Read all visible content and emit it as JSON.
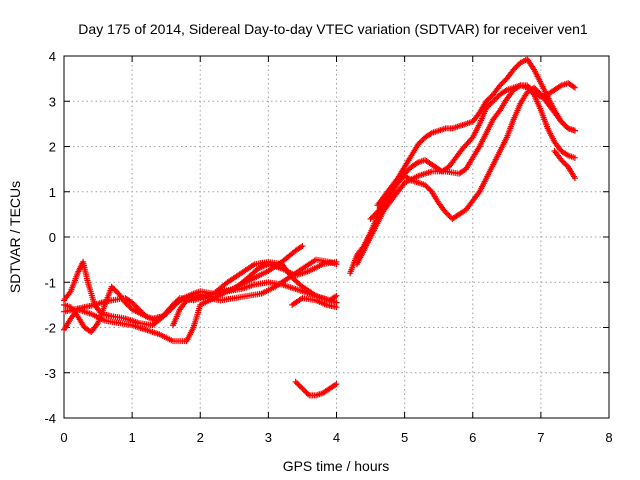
{
  "chart_data": {
    "type": "scatter",
    "title": "Day 175 of 2014, Sidereal Day-to-day VTEC variation (SDTVAR) for receiver ven1",
    "xlabel": "GPS time / hours",
    "ylabel": "SDTVAR / TECUs",
    "xlim": [
      0,
      8
    ],
    "ylim": [
      -4,
      4
    ],
    "xticks": [
      "0",
      "1",
      "2",
      "3",
      "4",
      "5",
      "6",
      "7",
      "8"
    ],
    "yticks": [
      "-4",
      "-3",
      "-2",
      "-1",
      "0",
      "1",
      "2",
      "3",
      "4"
    ],
    "grid": true,
    "marker": "+",
    "color": "#ff0000",
    "series": [
      {
        "points": [
          [
            0.0,
            -2.05
          ],
          [
            0.1,
            -1.8
          ],
          [
            0.2,
            -1.6
          ],
          [
            0.4,
            -1.7
          ],
          [
            0.6,
            -1.85
          ],
          [
            0.8,
            -1.9
          ],
          [
            1.0,
            -1.95
          ],
          [
            1.2,
            -2.05
          ],
          [
            1.4,
            -2.15
          ],
          [
            1.6,
            -2.3
          ],
          [
            1.8,
            -2.3
          ],
          [
            1.9,
            -2.0
          ],
          [
            2.0,
            -1.5
          ],
          [
            2.2,
            -1.35
          ],
          [
            2.4,
            -1.2
          ],
          [
            2.6,
            -1.05
          ],
          [
            2.8,
            -0.9
          ],
          [
            3.0,
            -0.75
          ],
          [
            3.2,
            -0.55
          ],
          [
            3.4,
            -0.3
          ],
          [
            3.5,
            -0.2
          ]
        ]
      },
      {
        "points": [
          [
            0.0,
            -1.4
          ],
          [
            0.1,
            -1.2
          ],
          [
            0.2,
            -0.8
          ],
          [
            0.28,
            -0.55
          ],
          [
            0.35,
            -1.0
          ],
          [
            0.45,
            -1.5
          ],
          [
            0.55,
            -1.7
          ],
          [
            0.7,
            -1.75
          ],
          [
            0.9,
            -1.8
          ],
          [
            1.1,
            -1.9
          ],
          [
            1.3,
            -1.95
          ],
          [
            1.5,
            -1.7
          ],
          [
            1.7,
            -1.4
          ],
          [
            1.9,
            -1.3
          ],
          [
            2.1,
            -1.35
          ],
          [
            2.3,
            -1.4
          ],
          [
            2.5,
            -1.35
          ],
          [
            2.7,
            -1.3
          ],
          [
            2.9,
            -1.25
          ],
          [
            3.1,
            -1.1
          ],
          [
            3.3,
            -0.9
          ],
          [
            3.5,
            -0.7
          ],
          [
            3.7,
            -0.5
          ],
          [
            3.9,
            -0.55
          ],
          [
            4.0,
            -0.6
          ]
        ]
      },
      {
        "points": [
          [
            0.0,
            -1.5
          ],
          [
            0.1,
            -1.55
          ],
          [
            0.2,
            -1.75
          ],
          [
            0.3,
            -2.0
          ],
          [
            0.4,
            -2.1
          ],
          [
            0.5,
            -1.9
          ],
          [
            0.6,
            -1.5
          ],
          [
            0.7,
            -1.1
          ],
          [
            0.8,
            -1.25
          ],
          [
            0.9,
            -1.45
          ],
          [
            1.0,
            -1.6
          ],
          [
            1.2,
            -1.75
          ],
          [
            1.35,
            -1.85
          ],
          [
            1.5,
            -1.7
          ],
          [
            1.6,
            -1.5
          ],
          [
            1.7,
            -1.35
          ],
          [
            1.9,
            -1.4
          ],
          [
            2.1,
            -1.3
          ],
          [
            2.3,
            -1.2
          ],
          [
            2.5,
            -1.15
          ],
          [
            2.7,
            -0.9
          ],
          [
            2.85,
            -0.7
          ],
          [
            3.0,
            -0.6
          ],
          [
            3.2,
            -0.7
          ],
          [
            3.4,
            -0.85
          ],
          [
            3.6,
            -0.75
          ],
          [
            3.8,
            -0.6
          ],
          [
            4.0,
            -0.55
          ]
        ]
      },
      {
        "points": [
          [
            0.0,
            -1.65
          ],
          [
            0.15,
            -1.6
          ],
          [
            0.3,
            -1.55
          ],
          [
            0.45,
            -1.5
          ],
          [
            0.55,
            -1.45
          ],
          [
            0.7,
            -1.4
          ],
          [
            0.9,
            -1.35
          ],
          [
            1.0,
            -1.45
          ],
          [
            1.1,
            -1.6
          ],
          [
            1.2,
            -1.75
          ],
          [
            1.3,
            -1.8
          ],
          [
            1.45,
            -1.75
          ],
          [
            1.6,
            -1.5
          ],
          [
            1.75,
            -1.35
          ],
          [
            1.9,
            -1.25
          ],
          [
            2.0,
            -1.2
          ],
          [
            2.2,
            -1.25
          ],
          [
            2.4,
            -1.0
          ],
          [
            2.6,
            -0.8
          ],
          [
            2.8,
            -0.6
          ],
          [
            3.0,
            -0.55
          ],
          [
            3.2,
            -0.6
          ],
          [
            3.35,
            -0.9
          ],
          [
            3.5,
            -1.1
          ],
          [
            3.7,
            -1.3
          ],
          [
            3.9,
            -1.4
          ],
          [
            4.0,
            -1.3
          ]
        ]
      },
      {
        "points": [
          [
            1.6,
            -1.95
          ],
          [
            1.7,
            -1.6
          ],
          [
            1.8,
            -1.4
          ],
          [
            2.0,
            -1.3
          ],
          [
            2.2,
            -1.25
          ],
          [
            2.4,
            -1.2
          ],
          [
            2.6,
            -1.15
          ],
          [
            2.8,
            -1.05
          ],
          [
            3.0,
            -1.0
          ],
          [
            3.2,
            -1.05
          ],
          [
            3.4,
            -1.15
          ],
          [
            3.6,
            -1.25
          ],
          [
            3.8,
            -1.35
          ],
          [
            4.0,
            -1.45
          ]
        ]
      },
      {
        "points": [
          [
            3.35,
            -1.5
          ],
          [
            3.5,
            -1.35
          ],
          [
            3.7,
            -1.4
          ],
          [
            3.85,
            -1.5
          ],
          [
            4.0,
            -1.55
          ]
        ]
      },
      {
        "points": [
          [
            3.4,
            -3.2
          ],
          [
            3.5,
            -3.35
          ],
          [
            3.6,
            -3.5
          ],
          [
            3.7,
            -3.5
          ],
          [
            3.8,
            -3.45
          ],
          [
            3.9,
            -3.35
          ],
          [
            4.0,
            -3.25
          ]
        ]
      },
      {
        "points": [
          [
            4.2,
            -0.8
          ],
          [
            4.3,
            -0.4
          ],
          [
            4.4,
            -0.2
          ],
          [
            4.5,
            0.1
          ],
          [
            4.6,
            0.45
          ],
          [
            4.7,
            0.7
          ],
          [
            4.8,
            0.95
          ],
          [
            4.9,
            1.2
          ],
          [
            5.0,
            1.35
          ],
          [
            5.1,
            1.25
          ],
          [
            5.2,
            1.2
          ],
          [
            5.3,
            1.15
          ],
          [
            5.4,
            1.0
          ],
          [
            5.5,
            0.75
          ],
          [
            5.6,
            0.55
          ],
          [
            5.7,
            0.4
          ],
          [
            5.8,
            0.5
          ],
          [
            5.9,
            0.6
          ],
          [
            6.0,
            0.8
          ],
          [
            6.1,
            1.0
          ],
          [
            6.2,
            1.3
          ],
          [
            6.3,
            1.6
          ],
          [
            6.4,
            1.9
          ],
          [
            6.5,
            2.2
          ],
          [
            6.6,
            2.6
          ],
          [
            6.7,
            2.95
          ],
          [
            6.8,
            3.2
          ],
          [
            6.9,
            3.3
          ],
          [
            7.0,
            3.15
          ],
          [
            7.1,
            2.95
          ],
          [
            7.2,
            2.75
          ],
          [
            7.3,
            2.55
          ],
          [
            7.4,
            2.4
          ],
          [
            7.5,
            2.35
          ]
        ]
      },
      {
        "points": [
          [
            4.3,
            -0.6
          ],
          [
            4.4,
            -0.3
          ],
          [
            4.5,
            0.0
          ],
          [
            4.6,
            0.3
          ],
          [
            4.7,
            0.6
          ],
          [
            4.8,
            0.8
          ],
          [
            4.9,
            1.0
          ],
          [
            5.0,
            1.2
          ],
          [
            5.2,
            1.35
          ],
          [
            5.4,
            1.45
          ],
          [
            5.6,
            1.45
          ],
          [
            5.8,
            1.4
          ],
          [
            5.9,
            1.5
          ],
          [
            6.0,
            1.75
          ],
          [
            6.1,
            2.0
          ],
          [
            6.2,
            2.3
          ],
          [
            6.3,
            2.6
          ],
          [
            6.4,
            2.8
          ],
          [
            6.5,
            3.05
          ],
          [
            6.6,
            3.25
          ],
          [
            6.7,
            3.35
          ],
          [
            6.8,
            3.3
          ],
          [
            6.9,
            3.15
          ],
          [
            7.0,
            2.8
          ],
          [
            7.1,
            2.4
          ],
          [
            7.2,
            2.1
          ],
          [
            7.3,
            1.9
          ],
          [
            7.4,
            1.8
          ],
          [
            7.5,
            1.75
          ]
        ]
      },
      {
        "points": [
          [
            4.5,
            0.4
          ],
          [
            4.6,
            0.55
          ],
          [
            4.7,
            0.75
          ],
          [
            4.8,
            1.0
          ],
          [
            4.9,
            1.25
          ],
          [
            5.0,
            1.4
          ],
          [
            5.1,
            1.55
          ],
          [
            5.2,
            1.65
          ],
          [
            5.3,
            1.7
          ],
          [
            5.45,
            1.55
          ],
          [
            5.55,
            1.45
          ],
          [
            5.65,
            1.55
          ],
          [
            5.75,
            1.75
          ],
          [
            5.85,
            1.95
          ],
          [
            6.0,
            2.2
          ],
          [
            6.1,
            2.5
          ],
          [
            6.2,
            2.85
          ],
          [
            6.3,
            3.0
          ],
          [
            6.4,
            3.15
          ],
          [
            6.5,
            3.25
          ],
          [
            6.6,
            3.3
          ],
          [
            6.7,
            3.35
          ],
          [
            6.8,
            3.35
          ],
          [
            6.9,
            3.2
          ],
          [
            7.0,
            3.1
          ],
          [
            7.1,
            3.15
          ],
          [
            7.2,
            3.25
          ],
          [
            7.3,
            3.35
          ],
          [
            7.4,
            3.4
          ],
          [
            7.5,
            3.3
          ]
        ]
      },
      {
        "points": [
          [
            4.6,
            0.7
          ],
          [
            4.7,
            0.9
          ],
          [
            4.8,
            1.1
          ],
          [
            4.9,
            1.3
          ],
          [
            5.0,
            1.55
          ],
          [
            5.1,
            1.8
          ],
          [
            5.2,
            2.05
          ],
          [
            5.3,
            2.2
          ],
          [
            5.4,
            2.3
          ],
          [
            5.5,
            2.35
          ],
          [
            5.6,
            2.4
          ],
          [
            5.7,
            2.4
          ],
          [
            5.8,
            2.45
          ],
          [
            5.9,
            2.5
          ],
          [
            6.0,
            2.55
          ],
          [
            6.1,
            2.75
          ],
          [
            6.2,
            3.0
          ],
          [
            6.3,
            3.15
          ],
          [
            6.4,
            3.35
          ],
          [
            6.5,
            3.5
          ],
          [
            6.6,
            3.7
          ],
          [
            6.7,
            3.85
          ],
          [
            6.8,
            3.93
          ],
          [
            6.9,
            3.7
          ],
          [
            7.0,
            3.4
          ],
          [
            7.1,
            3.1
          ],
          [
            7.2,
            2.8
          ],
          [
            7.3,
            2.55
          ],
          [
            7.4,
            2.4
          ],
          [
            7.5,
            2.35
          ]
        ]
      },
      {
        "points": [
          [
            7.2,
            1.9
          ],
          [
            7.3,
            1.7
          ],
          [
            7.4,
            1.55
          ],
          [
            7.5,
            1.3
          ]
        ]
      }
    ]
  }
}
